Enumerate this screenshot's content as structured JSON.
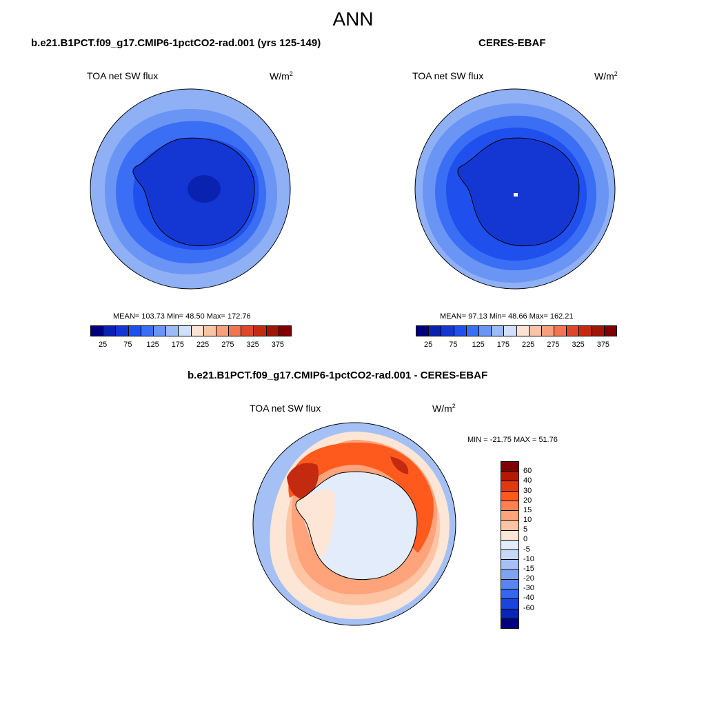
{
  "title": "ANN",
  "panels": {
    "model": {
      "title": "b.e21.B1PCT.f09_g17.CMIP6-1pctCO2-rad.001 (yrs 125-149)",
      "variable": "TOA net SW flux",
      "units_base": "W/m",
      "units_exp": "2",
      "stats": "MEAN= 103.73  Min=  48.50  Max= 172.76"
    },
    "obs": {
      "title": "CERES-EBAF",
      "variable": "TOA net SW flux",
      "units_base": "W/m",
      "units_exp": "2",
      "stats": "MEAN=  97.13  Min=  48.66  Max= 162.21"
    },
    "diff": {
      "title": "b.e21.B1PCT.f09_g17.CMIP6-1pctCO2-rad.001 - CERES-EBAF",
      "variable": "TOA net SW flux",
      "units_base": "W/m",
      "units_exp": "2",
      "stats": "MIN = -21.75 MAX =  51.76"
    }
  },
  "colorbar_main": {
    "colors": [
      "#00007f",
      "#0a22b0",
      "#1437d4",
      "#1f4fec",
      "#3a6ef5",
      "#6a95f5",
      "#9cbaf5",
      "#cfe0fa",
      "#fbe2d2",
      "#f9c4a5",
      "#f6a07c",
      "#f07552",
      "#e0462a",
      "#c42a10",
      "#a01606",
      "#7f0000"
    ],
    "tick_labels": [
      "25",
      "75",
      "125",
      "175",
      "225",
      "275",
      "325",
      "375"
    ]
  },
  "colorbar_diff": {
    "colors": [
      "#7f0000",
      "#b51a00",
      "#e0380f",
      "#ff5a1e",
      "#ff8050",
      "#ffa37a",
      "#ffc4a3",
      "#fde6d6",
      "#e2ecfa",
      "#c6d8f7",
      "#a5c0f5",
      "#7fa2f5",
      "#5a84f2",
      "#3566ef",
      "#1a44de",
      "#0a26b4",
      "#00007f"
    ],
    "tick_labels": [
      "60",
      "40",
      "30",
      "20",
      "15",
      "10",
      "5",
      "0",
      "-5",
      "-10",
      "-15",
      "-20",
      "-30",
      "-40",
      "-60"
    ]
  },
  "map_colors": {
    "outer_blue": "#8fb0f5",
    "mid_blue": "#6a95f5",
    "inner_blue": "#3a6ef5",
    "ant_blue": "#1f4fec",
    "deep_blue": "#1437d4",
    "darkest_blue": "#0a22b0",
    "diff_outer": "#a5c0f5",
    "diff_light": "#e2ecfa",
    "diff_peach": "#fde6d6",
    "diff_salmon": "#ffc4a3",
    "diff_orange": "#ffa37a",
    "diff_red": "#ff5a1e",
    "diff_dark": "#c42a10"
  }
}
